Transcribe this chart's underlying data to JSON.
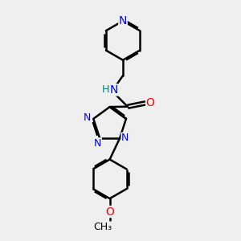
{
  "bg_color": "#efefef",
  "bond_color": "#000000",
  "bond_width": 1.8,
  "atom_colors": {
    "N": "#0000ff",
    "O": "#ff0000",
    "H": "#008080",
    "C": "#000000"
  },
  "font_size": 9,
  "fig_size": [
    3.0,
    3.0
  ],
  "dpi": 100
}
